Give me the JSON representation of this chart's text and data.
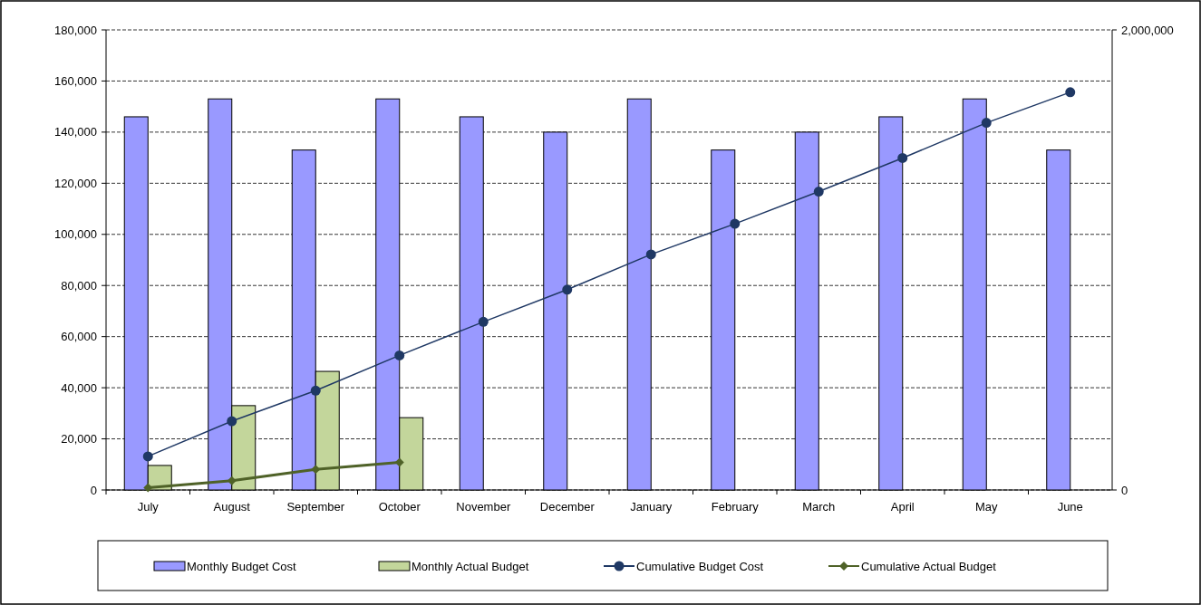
{
  "chart_data": {
    "type": "bar",
    "categories": [
      "July",
      "August",
      "September",
      "October",
      "November",
      "December",
      "January",
      "February",
      "March",
      "April",
      "May",
      "June"
    ],
    "series": [
      {
        "name": "Monthly Budget Cost",
        "color": "#9999ff",
        "values": [
          146000,
          153000,
          133000,
          153000,
          146000,
          140000,
          153000,
          133000,
          140000,
          146000,
          153000,
          133000
        ]
      },
      {
        "name": "Monthly Actual Budget",
        "type": "bar",
        "color": "#c3d69b",
        "values": [
          9600,
          33000,
          46400,
          28300,
          null,
          null,
          null,
          null,
          null,
          null,
          null,
          null
        ]
      },
      {
        "name": "Cumulative Budget Cost",
        "type": "line",
        "axis": "y2",
        "color": "#1f3864",
        "marker": "circle",
        "values": [
          146000,
          299000,
          432000,
          585000,
          731000,
          871000,
          1024000,
          1157000,
          1297000,
          1443000,
          1596000,
          1729000
        ]
      },
      {
        "name": "Cumulative Actual Budget",
        "type": "line",
        "axis": "y2",
        "color": "#4f6228",
        "marker": "diamond",
        "values": [
          10000,
          40000,
          90000,
          120000,
          null,
          null,
          null,
          null,
          null,
          null,
          null,
          null
        ]
      }
    ],
    "ylim": [
      0,
      180000
    ],
    "yticks": [
      {
        "value": 0,
        "label": "0"
      },
      {
        "value": 20000,
        "label": "20,000"
      },
      {
        "value": 40000,
        "label": "40,000"
      },
      {
        "value": 60000,
        "label": "60,000"
      },
      {
        "value": 80000,
        "label": "80,000"
      },
      {
        "value": 100000,
        "label": "100,000"
      },
      {
        "value": 120000,
        "label": "120,000"
      },
      {
        "value": 140000,
        "label": "140,000"
      },
      {
        "value": 160000,
        "label": "160,000"
      },
      {
        "value": 180000,
        "label": "180,000"
      }
    ],
    "y2lim": [
      0,
      2000000
    ],
    "y2ticks": [
      {
        "value": 0,
        "label": "0"
      },
      {
        "value": 2000000,
        "label": "2,000,000"
      }
    ],
    "grid": "y",
    "legend": "bottom"
  }
}
